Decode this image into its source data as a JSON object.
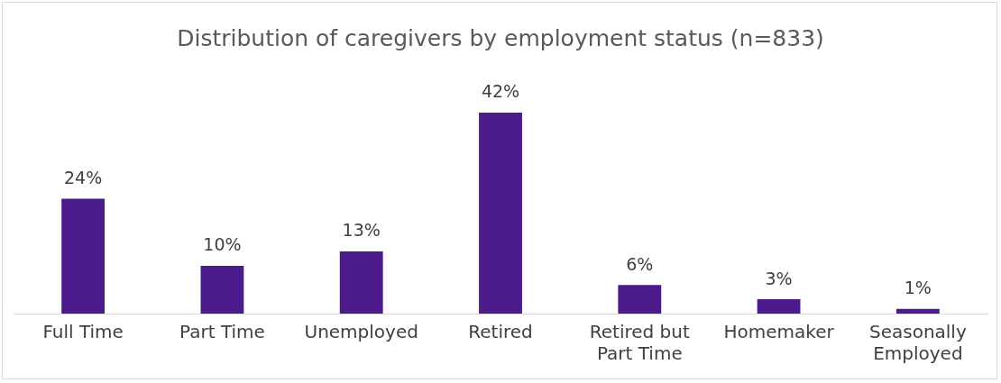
{
  "chart_data": {
    "type": "bar",
    "title": "Distribution of caregivers by employment status (n=833)",
    "categories": [
      "Full Time",
      "Part Time",
      "Unemployed",
      "Retired",
      "Retired but Part Time",
      "Homemaker",
      "Seasonally Employed"
    ],
    "values": [
      24,
      10,
      13,
      42,
      6,
      3,
      1
    ],
    "color": "#4b1a8b",
    "value_labels": [
      "24%",
      "10%",
      "13%",
      "42%",
      "6%",
      "3%",
      "1%"
    ],
    "grid": false,
    "legend": false
  }
}
